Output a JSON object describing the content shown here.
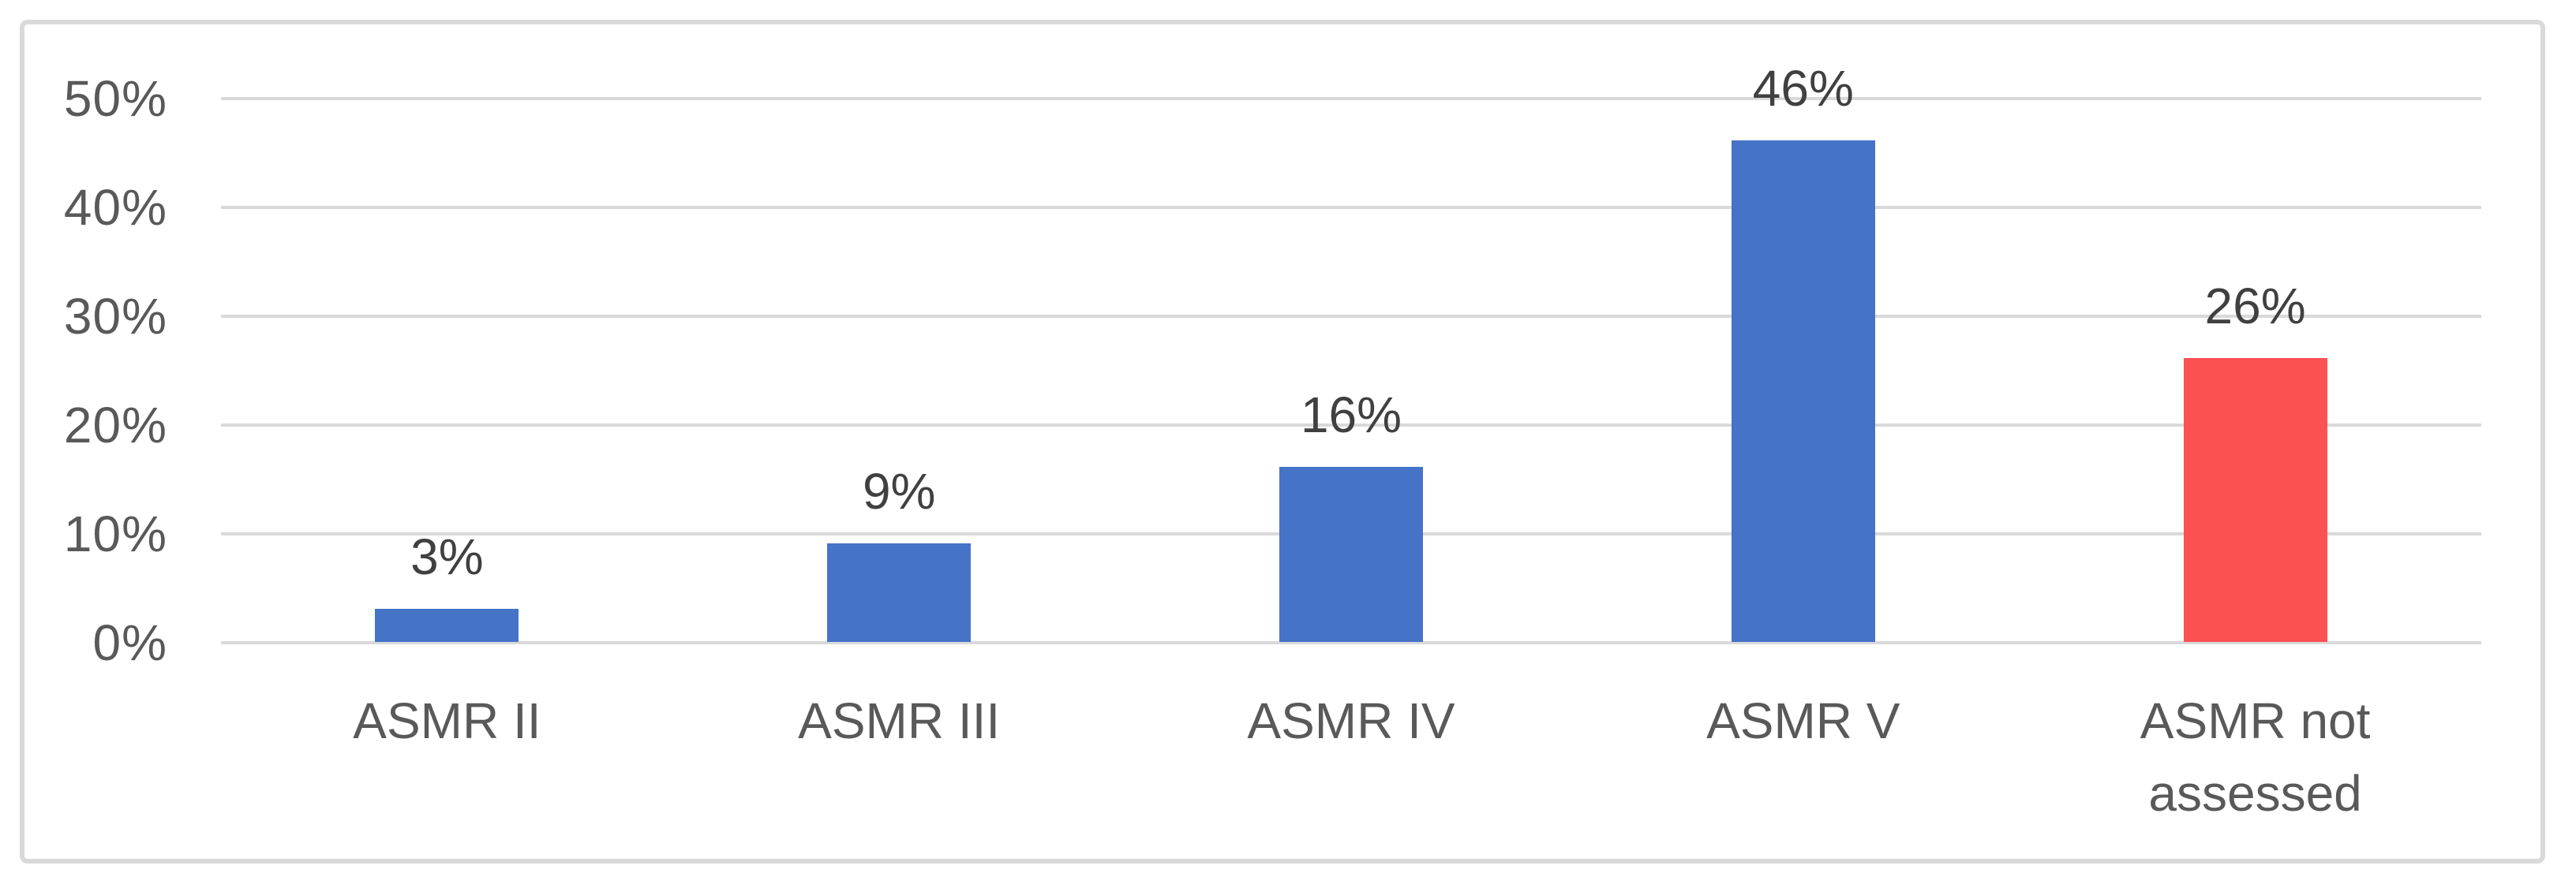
{
  "chart_data": {
    "type": "bar",
    "title": "",
    "subtitle": "",
    "xlabel": "",
    "ylabel": "",
    "categories": [
      "ASMR II",
      "ASMR III",
      "ASMR IV",
      "ASMR V",
      "ASMR  not\nassessed"
    ],
    "values": [
      3,
      9,
      16,
      46,
      26
    ],
    "data_labels": [
      "3%",
      "9%",
      "16%",
      "46%",
      "26%"
    ],
    "bar_colors": [
      "#4573C7",
      "#4573C7",
      "#4573C7",
      "#4573C7",
      "#FC5151"
    ],
    "ylim": [
      0,
      50
    ],
    "y_ticks": {
      "values": [
        0,
        10,
        20,
        30,
        40,
        50
      ],
      "labels": [
        "0%",
        "10%",
        "20%",
        "30%",
        "40%",
        "50%"
      ]
    },
    "grid": "horizontal",
    "legend": "none",
    "styles": {
      "grid_color": "#D9D9D9",
      "frame_border_color": "#D9D9D9",
      "axis_text_color": "#595959",
      "category_text_color": "#595959",
      "data_label_color": "#404040",
      "background": "#FFFFFF"
    }
  }
}
